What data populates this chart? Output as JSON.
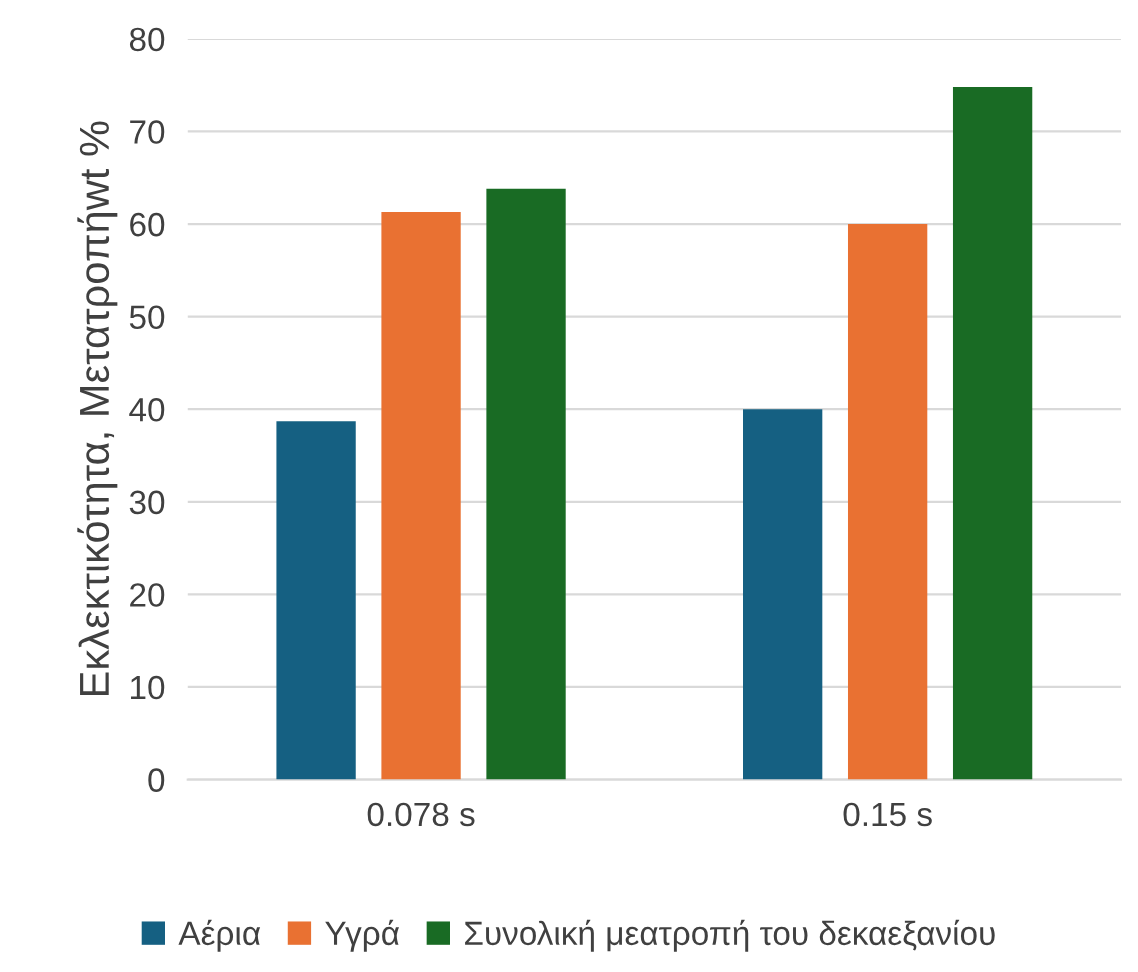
{
  "chart_data": {
    "type": "bar",
    "ylabel": "Εκλεκτικότητα, Μετατροπήwt %",
    "categories": [
      "0.078 s",
      "0.15 s"
    ],
    "series": [
      {
        "name": "Αέρια",
        "color": "#156082",
        "values": [
          38.7,
          40.0
        ]
      },
      {
        "name": "Υγρά",
        "color": "#e97132",
        "values": [
          61.3,
          60.0
        ]
      },
      {
        "name": "Συνολική μεατροπή του δεκαεξανίου",
        "color": "#196b24",
        "values": [
          63.8,
          74.8
        ]
      }
    ],
    "ylim": [
      0,
      80
    ],
    "yticks": [
      0,
      10,
      20,
      30,
      40,
      50,
      60,
      70,
      80
    ],
    "grid": "y",
    "legend": "bottom"
  }
}
